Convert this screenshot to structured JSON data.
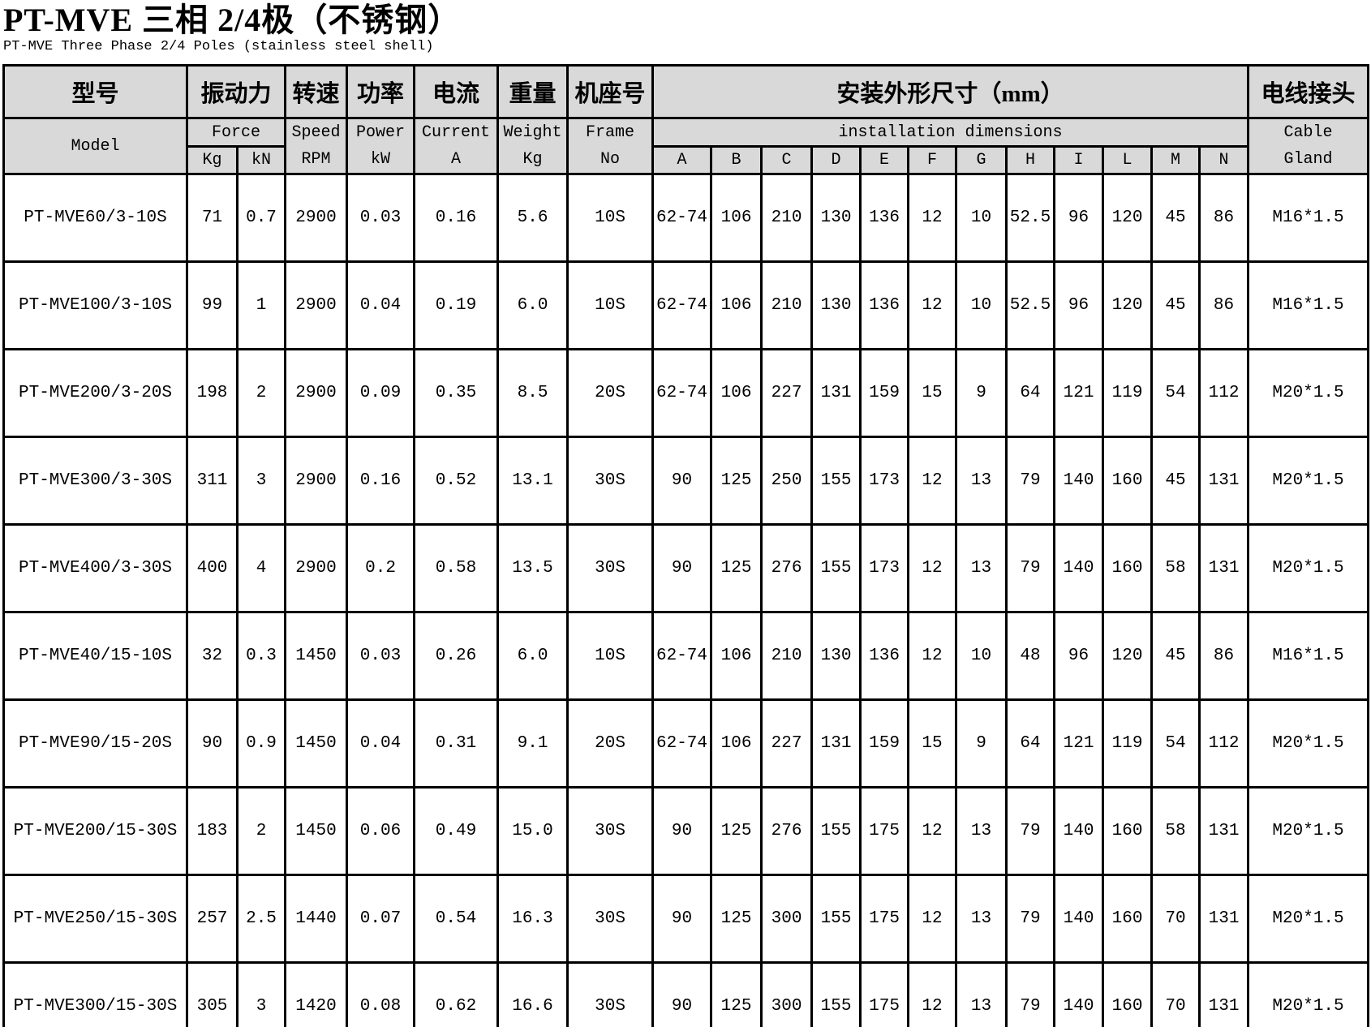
{
  "page": {
    "title": "PT-MVE 三相 2/4极（不锈钢）",
    "subtitle": "PT-MVE Three Phase 2/4 Poles (stainless steel shell)"
  },
  "colors": {
    "header_bg": "#d9d9d9",
    "border": "#000000",
    "background": "#ffffff",
    "text": "#000000"
  },
  "table": {
    "header": {
      "row1": {
        "model": "型号",
        "force": "振动力",
        "speed": "转速",
        "power": "功率",
        "current": "电流",
        "weight": "重量",
        "frame": "机座号",
        "dimensions": "安装外形尺寸（mm）",
        "cable": "电线接头"
      },
      "row2": {
        "model": "Model",
        "force": "Force",
        "speed_l1": "Speed",
        "speed_l2": "RPM",
        "power_l1": "Power",
        "power_l2": "kW",
        "current_l1": "Current",
        "current_l2": "A",
        "weight_l1": "Weight",
        "weight_l2": "Kg",
        "frame_l1": "Frame",
        "frame_l2": "No",
        "dimensions": "installation dimensions",
        "cable_l1": "Cable",
        "cable_l2": "Gland"
      },
      "row3": {
        "force_kg": "Kg",
        "force_kn": "kN",
        "dims": [
          "A",
          "B",
          "C",
          "D",
          "E",
          "F",
          "G",
          "H",
          "I",
          "L",
          "M",
          "N"
        ]
      }
    },
    "rows": [
      {
        "model": "PT-MVE60/3-10S",
        "force_kg": "71",
        "force_kn": "0.7",
        "speed": "2900",
        "power": "0.03",
        "current": "0.16",
        "weight": "5.6",
        "frame": "10S",
        "dims": [
          "62-74",
          "106",
          "210",
          "130",
          "136",
          "12",
          "10",
          "52.5",
          "96",
          "120",
          "45",
          "86"
        ],
        "cable": "M16*1.5"
      },
      {
        "model": "PT-MVE100/3-10S",
        "force_kg": "99",
        "force_kn": "1",
        "speed": "2900",
        "power": "0.04",
        "current": "0.19",
        "weight": "6.0",
        "frame": "10S",
        "dims": [
          "62-74",
          "106",
          "210",
          "130",
          "136",
          "12",
          "10",
          "52.5",
          "96",
          "120",
          "45",
          "86"
        ],
        "cable": "M16*1.5"
      },
      {
        "model": "PT-MVE200/3-20S",
        "force_kg": "198",
        "force_kn": "2",
        "speed": "2900",
        "power": "0.09",
        "current": "0.35",
        "weight": "8.5",
        "frame": "20S",
        "dims": [
          "62-74",
          "106",
          "227",
          "131",
          "159",
          "15",
          "9",
          "64",
          "121",
          "119",
          "54",
          "112"
        ],
        "cable": "M20*1.5"
      },
      {
        "model": "PT-MVE300/3-30S",
        "force_kg": "311",
        "force_kn": "3",
        "speed": "2900",
        "power": "0.16",
        "current": "0.52",
        "weight": "13.1",
        "frame": "30S",
        "dims": [
          "90",
          "125",
          "250",
          "155",
          "173",
          "12",
          "13",
          "79",
          "140",
          "160",
          "45",
          "131"
        ],
        "cable": "M20*1.5"
      },
      {
        "model": "PT-MVE400/3-30S",
        "force_kg": "400",
        "force_kn": "4",
        "speed": "2900",
        "power": "0.2",
        "current": "0.58",
        "weight": "13.5",
        "frame": "30S",
        "dims": [
          "90",
          "125",
          "276",
          "155",
          "173",
          "12",
          "13",
          "79",
          "140",
          "160",
          "58",
          "131"
        ],
        "cable": "M20*1.5"
      },
      {
        "model": "PT-MVE40/15-10S",
        "force_kg": "32",
        "force_kn": "0.3",
        "speed": "1450",
        "power": "0.03",
        "current": "0.26",
        "weight": "6.0",
        "frame": "10S",
        "dims": [
          "62-74",
          "106",
          "210",
          "130",
          "136",
          "12",
          "10",
          "48",
          "96",
          "120",
          "45",
          "86"
        ],
        "cable": "M16*1.5"
      },
      {
        "model": "PT-MVE90/15-20S",
        "force_kg": "90",
        "force_kn": "0.9",
        "speed": "1450",
        "power": "0.04",
        "current": "0.31",
        "weight": "9.1",
        "frame": "20S",
        "dims": [
          "62-74",
          "106",
          "227",
          "131",
          "159",
          "15",
          "9",
          "64",
          "121",
          "119",
          "54",
          "112"
        ],
        "cable": "M20*1.5"
      },
      {
        "model": "PT-MVE200/15-30S",
        "force_kg": "183",
        "force_kn": "2",
        "speed": "1450",
        "power": "0.06",
        "current": "0.49",
        "weight": "15.0",
        "frame": "30S",
        "dims": [
          "90",
          "125",
          "276",
          "155",
          "175",
          "12",
          "13",
          "79",
          "140",
          "160",
          "58",
          "131"
        ],
        "cable": "M20*1.5"
      },
      {
        "model": "PT-MVE250/15-30S",
        "force_kg": "257",
        "force_kn": "2.5",
        "speed": "1440",
        "power": "0.07",
        "current": "0.54",
        "weight": "16.3",
        "frame": "30S",
        "dims": [
          "90",
          "125",
          "300",
          "155",
          "175",
          "12",
          "13",
          "79",
          "140",
          "160",
          "70",
          "131"
        ],
        "cable": "M20*1.5"
      },
      {
        "model": "PT-MVE300/15-30S",
        "force_kg": "305",
        "force_kn": "3",
        "speed": "1420",
        "power": "0.08",
        "current": "0.62",
        "weight": "16.6",
        "frame": "30S",
        "dims": [
          "90",
          "125",
          "300",
          "155",
          "175",
          "12",
          "13",
          "79",
          "140",
          "160",
          "70",
          "131"
        ],
        "cable": "M20*1.5"
      }
    ]
  }
}
